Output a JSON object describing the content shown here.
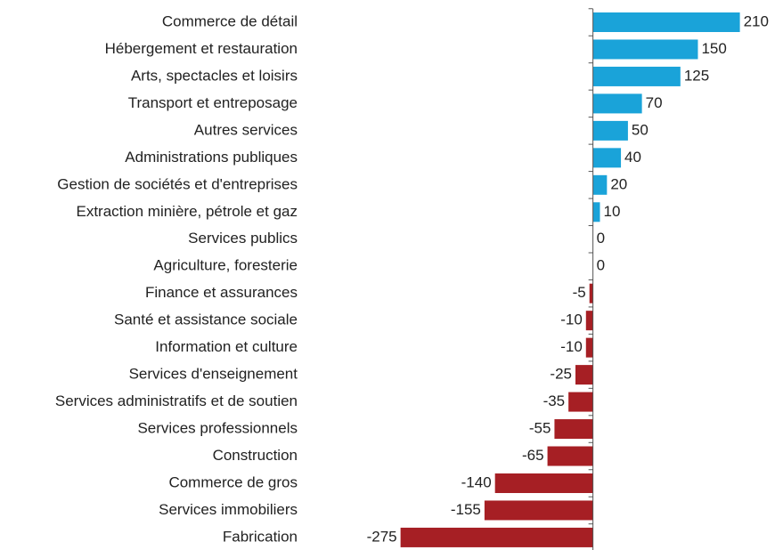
{
  "chart_data": {
    "type": "bar",
    "orientation": "horizontal",
    "categories": [
      "Commerce de détail",
      "Hébergement et restauration",
      "Arts, spectacles et loisirs",
      "Transport et entreposage",
      "Autres services",
      "Administrations publiques",
      "Gestion de sociétés et d'entreprises",
      "Extraction minière, pétrole et gaz",
      "Services publics",
      "Agriculture, foresterie",
      "Finance et assurances",
      "Santé et assistance sociale",
      "Information et culture",
      "Services d'enseignement",
      "Services administratifs et de soutien",
      "Services professionnels",
      "Construction",
      "Commerce de gros",
      "Services immobiliers",
      "Fabrication"
    ],
    "values": [
      210,
      150,
      125,
      70,
      50,
      40,
      20,
      10,
      0,
      0,
      -5,
      -10,
      -10,
      -25,
      -35,
      -55,
      -65,
      -140,
      -155,
      -275
    ],
    "positive_color": "#1aa3d9",
    "negative_color": "#a61f24",
    "xlim": [
      -300,
      250
    ]
  }
}
